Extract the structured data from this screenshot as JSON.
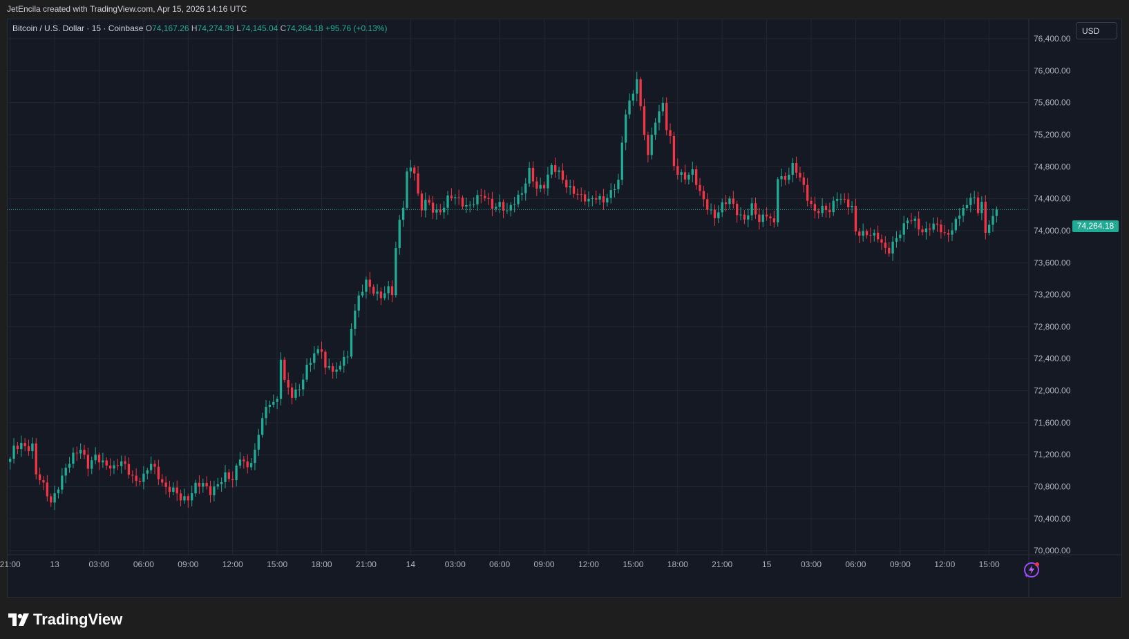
{
  "header": {
    "attribution": "JetEncila created with TradingView.com, Apr 15, 2026 14:16 UTC"
  },
  "legend": {
    "symbol": "Bitcoin / U.S. Dollar · 15 · Coinbase",
    "o_label": "O",
    "o_value": "74,167.26",
    "h_label": "H",
    "h_value": "74,274.39",
    "l_label": "L",
    "l_value": "74,145.04",
    "c_label": "C",
    "c_value": "74,264.18",
    "change": "+95.76 (+0.13%)"
  },
  "currency_button": "USD",
  "price_tag": "74,264.18",
  "logo_text": "TradingView",
  "colors": {
    "up": "#22ab94",
    "down": "#f23645",
    "background": "#151924",
    "grid": "#232733",
    "axis_text": "#b2b5be"
  },
  "chart_data": {
    "type": "candlestick",
    "title": "Bitcoin / U.S. Dollar · 15 · Coinbase",
    "ylim": [
      69950,
      76650
    ],
    "y_ticks": [
      70000,
      70400,
      70800,
      71200,
      71600,
      72000,
      72400,
      72800,
      73200,
      73600,
      74000,
      74400,
      74800,
      75200,
      75600,
      76000,
      76400
    ],
    "x_ticks": [
      {
        "label": "21:00",
        "index": 0
      },
      {
        "label": "13",
        "index": 12
      },
      {
        "label": "03:00",
        "index": 24
      },
      {
        "label": "06:00",
        "index": 36
      },
      {
        "label": "09:00",
        "index": 48
      },
      {
        "label": "12:00",
        "index": 60
      },
      {
        "label": "15:00",
        "index": 72
      },
      {
        "label": "18:00",
        "index": 84
      },
      {
        "label": "21:00",
        "index": 96
      },
      {
        "label": "14",
        "index": 108
      },
      {
        "label": "03:00",
        "index": 120
      },
      {
        "label": "06:00",
        "index": 132
      },
      {
        "label": "09:00",
        "index": 144
      },
      {
        "label": "12:00",
        "index": 156
      },
      {
        "label": "15:00",
        "index": 168
      },
      {
        "label": "18:00",
        "index": 180
      },
      {
        "label": "21:00",
        "index": 192
      },
      {
        "label": "15",
        "index": 204
      },
      {
        "label": "03:00",
        "index": 216
      },
      {
        "label": "06:00",
        "index": 228
      },
      {
        "label": "09:00",
        "index": 240
      },
      {
        "label": "12:00",
        "index": 252
      },
      {
        "label": "15:00",
        "index": 264
      }
    ],
    "total_slots": 275,
    "last_price": 74264.18,
    "grid": true,
    "waypoints": [
      [
        0,
        71150
      ],
      [
        1,
        71300
      ],
      [
        3,
        71350
      ],
      [
        5,
        71280
      ],
      [
        6,
        71300
      ],
      [
        7,
        70950
      ],
      [
        9,
        70800
      ],
      [
        11,
        70600
      ],
      [
        13,
        70820
      ],
      [
        15,
        71050
      ],
      [
        17,
        71180
      ],
      [
        19,
        71250
      ],
      [
        21,
        71050
      ],
      [
        23,
        71200
      ],
      [
        26,
        71080
      ],
      [
        28,
        71020
      ],
      [
        30,
        71100
      ],
      [
        32,
        70980
      ],
      [
        34,
        70880
      ],
      [
        36,
        70950
      ],
      [
        38,
        71100
      ],
      [
        40,
        70900
      ],
      [
        42,
        70760
      ],
      [
        44,
        70780
      ],
      [
        46,
        70680
      ],
      [
        48,
        70650
      ],
      [
        50,
        70800
      ],
      [
        52,
        70820
      ],
      [
        54,
        70730
      ],
      [
        56,
        70850
      ],
      [
        58,
        70960
      ],
      [
        60,
        70880
      ],
      [
        62,
        71150
      ],
      [
        64,
        71020
      ],
      [
        66,
        71250
      ],
      [
        68,
        71700
      ],
      [
        70,
        71850
      ],
      [
        72,
        71850
      ],
      [
        73,
        72400
      ],
      [
        74,
        72100
      ],
      [
        76,
        71950
      ],
      [
        78,
        72050
      ],
      [
        80,
        72300
      ],
      [
        82,
        72450
      ],
      [
        84,
        72500
      ],
      [
        85,
        72250
      ],
      [
        86,
        72300
      ],
      [
        88,
        72250
      ],
      [
        90,
        72450
      ],
      [
        91,
        72400
      ],
      [
        92,
        72800
      ],
      [
        94,
        73150
      ],
      [
        96,
        73350
      ],
      [
        98,
        73250
      ],
      [
        100,
        73200
      ],
      [
        102,
        73280
      ],
      [
        103,
        73220
      ],
      [
        104,
        73750
      ],
      [
        105,
        74100
      ],
      [
        106,
        74300
      ],
      [
        107,
        74700
      ],
      [
        108,
        74800
      ],
      [
        109,
        74750
      ],
      [
        110,
        74450
      ],
      [
        111,
        74300
      ],
      [
        112,
        74400
      ],
      [
        114,
        74250
      ],
      [
        116,
        74200
      ],
      [
        118,
        74400
      ],
      [
        120,
        74450
      ],
      [
        122,
        74350
      ],
      [
        124,
        74300
      ],
      [
        126,
        74400
      ],
      [
        128,
        74420
      ],
      [
        130,
        74300
      ],
      [
        132,
        74350
      ],
      [
        134,
        74250
      ],
      [
        136,
        74350
      ],
      [
        138,
        74450
      ],
      [
        140,
        74750
      ],
      [
        142,
        74550
      ],
      [
        144,
        74580
      ],
      [
        146,
        74800
      ],
      [
        148,
        74700
      ],
      [
        150,
        74550
      ],
      [
        152,
        74500
      ],
      [
        154,
        74450
      ],
      [
        156,
        74380
      ],
      [
        158,
        74400
      ],
      [
        160,
        74350
      ],
      [
        162,
        74480
      ],
      [
        164,
        74650
      ],
      [
        165,
        75100
      ],
      [
        166,
        75500
      ],
      [
        168,
        75700
      ],
      [
        169,
        75900
      ],
      [
        170,
        75500
      ],
      [
        171,
        75200
      ],
      [
        172,
        74950
      ],
      [
        174,
        75400
      ],
      [
        176,
        75600
      ],
      [
        177,
        75300
      ],
      [
        178,
        75150
      ],
      [
        179,
        74800
      ],
      [
        180,
        74700
      ],
      [
        182,
        74650
      ],
      [
        184,
        74750
      ],
      [
        186,
        74500
      ],
      [
        188,
        74300
      ],
      [
        190,
        74150
      ],
      [
        192,
        74300
      ],
      [
        194,
        74400
      ],
      [
        196,
        74250
      ],
      [
        198,
        74150
      ],
      [
        200,
        74300
      ],
      [
        202,
        74100
      ],
      [
        204,
        74200
      ],
      [
        206,
        74100
      ],
      [
        207,
        74700
      ],
      [
        209,
        74650
      ],
      [
        211,
        74800
      ],
      [
        213,
        74650
      ],
      [
        215,
        74400
      ],
      [
        217,
        74250
      ],
      [
        219,
        74300
      ],
      [
        221,
        74250
      ],
      [
        223,
        74400
      ],
      [
        225,
        74350
      ],
      [
        227,
        74300
      ],
      [
        228,
        74000
      ],
      [
        230,
        73980
      ],
      [
        232,
        73950
      ],
      [
        234,
        73900
      ],
      [
        236,
        73750
      ],
      [
        237,
        73750
      ],
      [
        238,
        73850
      ],
      [
        240,
        74000
      ],
      [
        242,
        74150
      ],
      [
        244,
        74100
      ],
      [
        246,
        73950
      ],
      [
        248,
        74050
      ],
      [
        250,
        74100
      ],
      [
        252,
        73950
      ],
      [
        254,
        74000
      ],
      [
        256,
        74200
      ],
      [
        258,
        74300
      ],
      [
        259,
        74450
      ],
      [
        260,
        74400
      ],
      [
        261,
        74250
      ],
      [
        262,
        74400
      ],
      [
        263,
        73950
      ],
      [
        264,
        74100
      ],
      [
        265,
        74170
      ],
      [
        266,
        74264
      ]
    ]
  }
}
